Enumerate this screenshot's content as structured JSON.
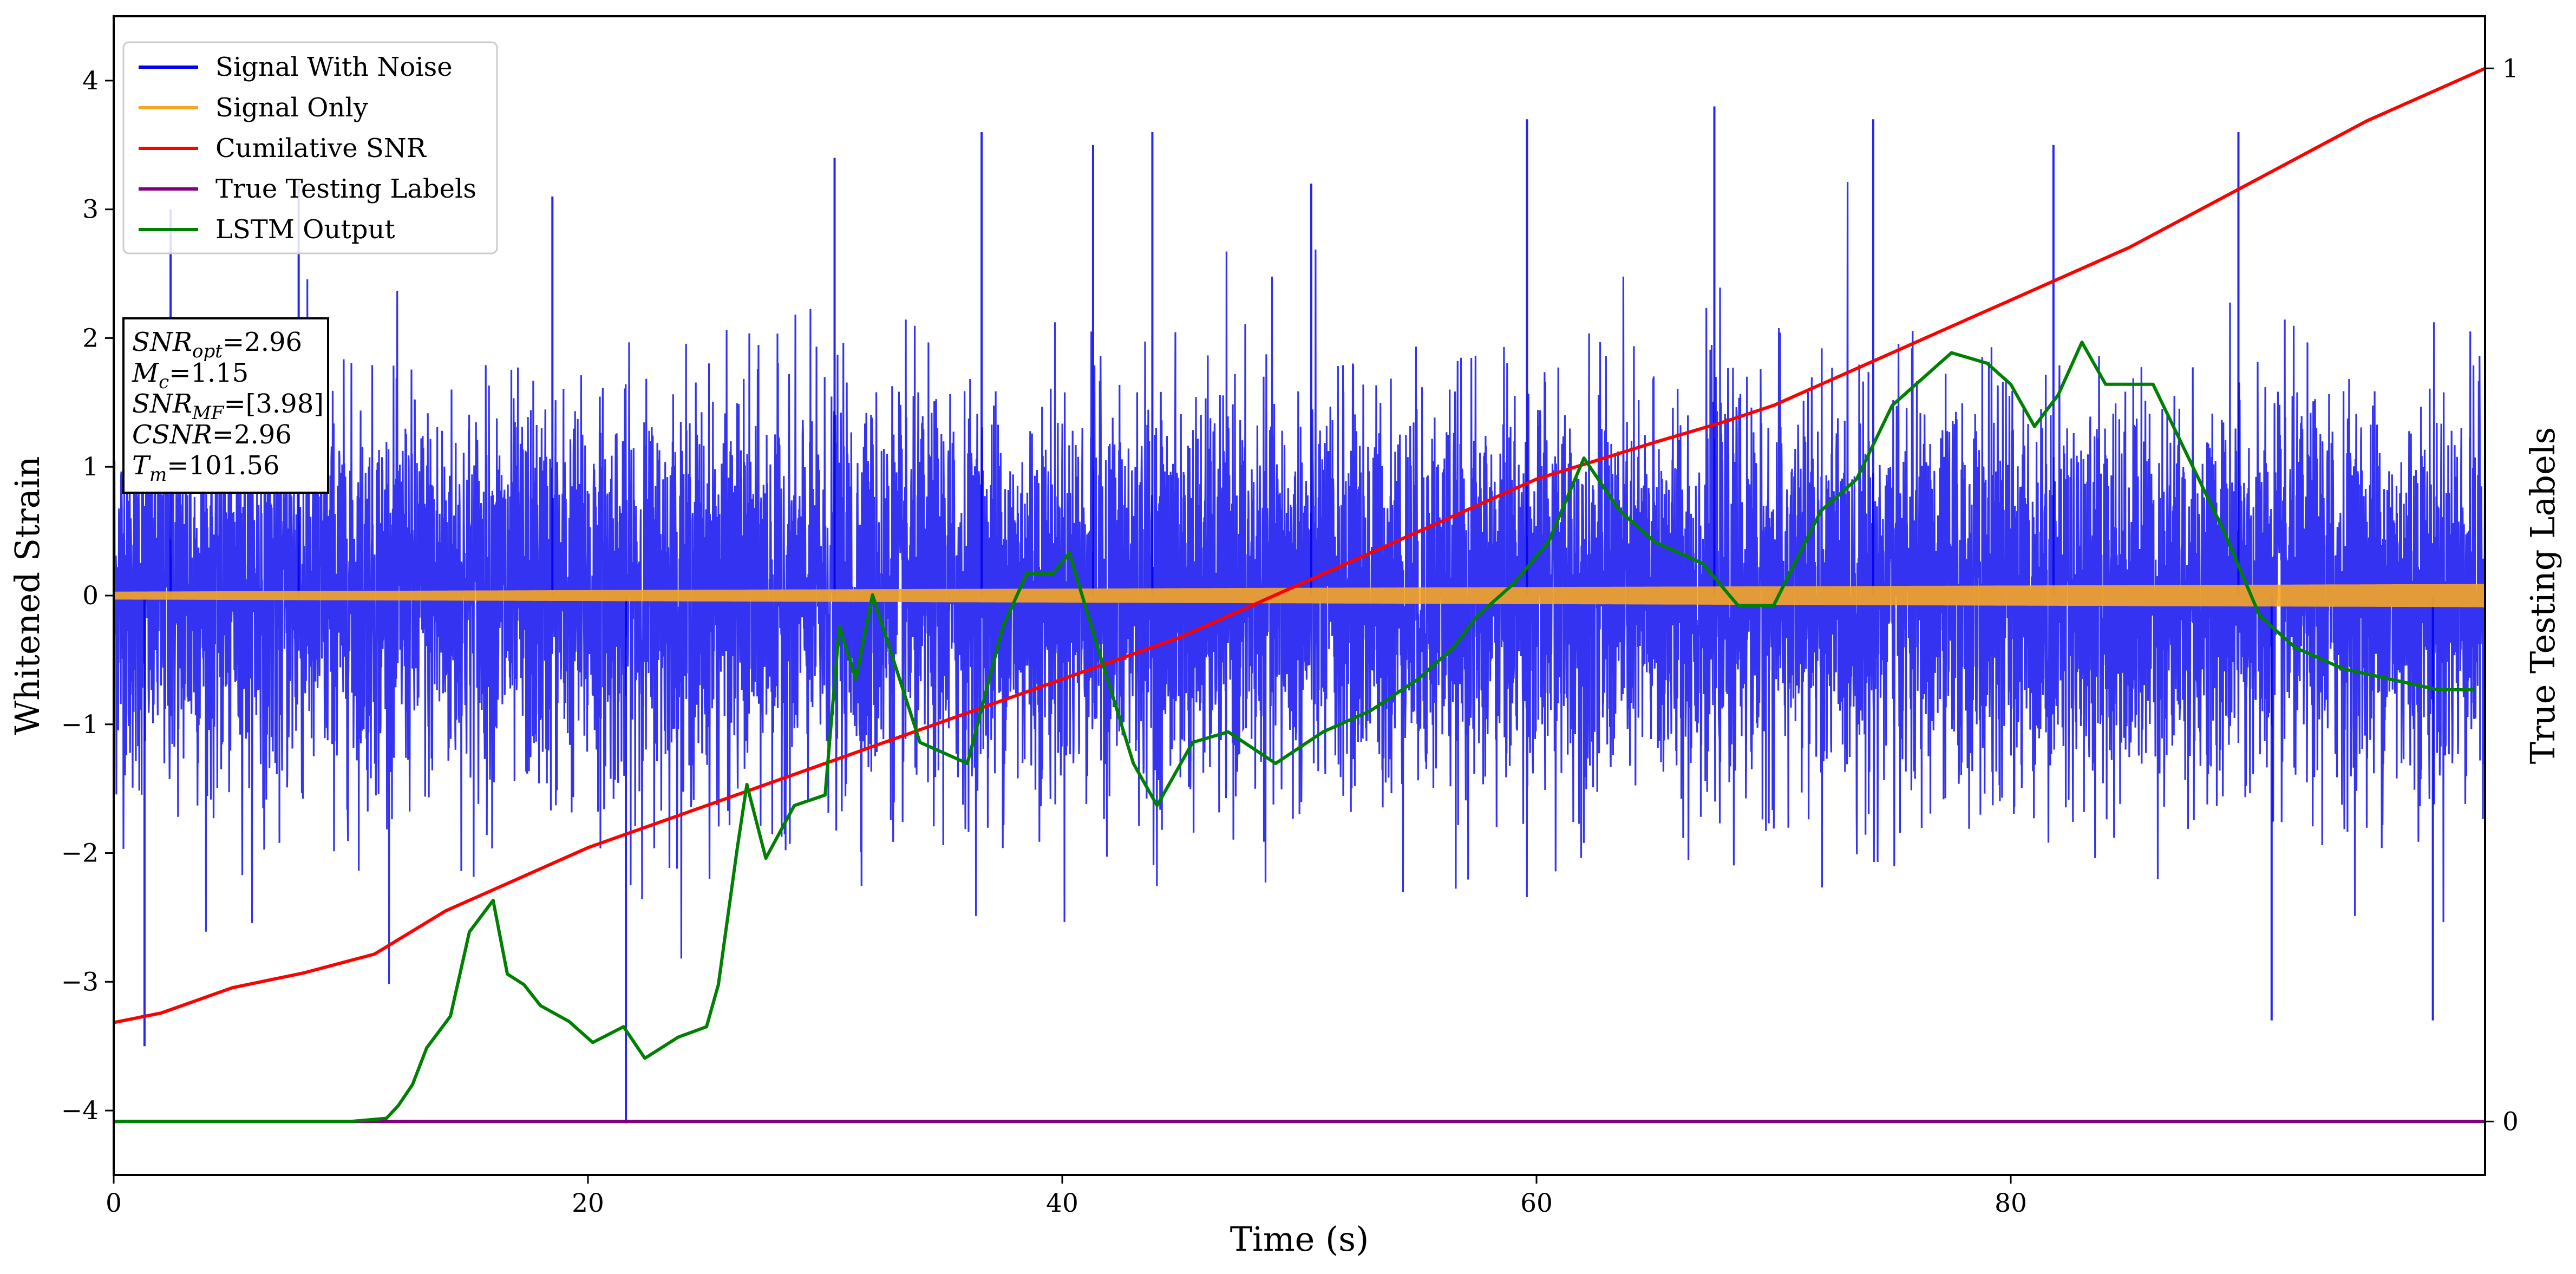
{
  "chart_data": {
    "type": "line",
    "title": "",
    "xlabel": "Time (s)",
    "ylabel": "Whitened Strain",
    "y2label": "True Testing Labels",
    "xlim": [
      0,
      100
    ],
    "ylim": [
      -4.5,
      4.5
    ],
    "y2_ticks": [
      0,
      1
    ],
    "x_ticks": [
      0,
      20,
      40,
      60,
      80
    ],
    "y_ticks": [
      -4,
      -3,
      -2,
      -1,
      0,
      1,
      2,
      3,
      4
    ],
    "grid": false,
    "legend_position": "top-left",
    "series": [
      {
        "name": "Signal With Noise",
        "color": "#0000ee",
        "axis": "left",
        "note_values": "dense noise band, sd ~0.75, peaks ~3.9 / -4.1",
        "noise_sd": 0.75,
        "spikes": [
          {
            "x": 2.4,
            "y": 3.0
          },
          {
            "x": 7.8,
            "y": 3.2
          },
          {
            "x": 18.5,
            "y": 3.1
          },
          {
            "x": 21.6,
            "y": -4.1
          },
          {
            "x": 30.4,
            "y": 3.4
          },
          {
            "x": 36.6,
            "y": 3.6
          },
          {
            "x": 41.3,
            "y": 3.5
          },
          {
            "x": 43.8,
            "y": 3.6
          },
          {
            "x": 50.5,
            "y": 3.2
          },
          {
            "x": 59.6,
            "y": 3.7
          },
          {
            "x": 67.5,
            "y": 3.8
          },
          {
            "x": 74.2,
            "y": 3.7
          },
          {
            "x": 81.8,
            "y": 3.5
          },
          {
            "x": 89.6,
            "y": 3.6
          },
          {
            "x": 91.0,
            "y": -3.3
          },
          {
            "x": 97.8,
            "y": -3.3
          },
          {
            "x": 1.3,
            "y": -3.5
          }
        ]
      },
      {
        "name": "Signal Only",
        "color": "#f5a623",
        "axis": "left",
        "note_values": "chirp around 0, amplitude growing from ~0.03 to ~0.09",
        "amplitude_start": 0.03,
        "amplitude_end": 0.09
      },
      {
        "name": "Cumilative SNR",
        "color": "#ff0000",
        "axis": "right",
        "x": [
          0,
          2,
          5,
          8,
          11,
          14,
          17,
          20,
          25,
          30,
          35,
          40,
          45,
          50,
          55,
          60,
          65,
          68,
          70,
          75,
          80,
          85,
          90,
          95,
          100
        ],
        "values": [
          0.094,
          0.103,
          0.127,
          0.141,
          0.159,
          0.2,
          0.23,
          0.26,
          0.3,
          0.34,
          0.38,
          0.42,
          0.46,
          0.51,
          0.56,
          0.61,
          0.645,
          0.665,
          0.68,
          0.73,
          0.78,
          0.83,
          0.89,
          0.95,
          1.0
        ]
      },
      {
        "name": "True Testing Labels",
        "color": "#800080",
        "axis": "right",
        "x": [
          0,
          100
        ],
        "values": [
          0,
          0
        ]
      },
      {
        "name": "LSTM Output",
        "color": "#008000",
        "axis": "right",
        "x": [
          0,
          10,
          11.5,
          12,
          12.6,
          13.2,
          14.2,
          15,
          16,
          16.6,
          17.3,
          18,
          19.2,
          20.2,
          21.5,
          22.4,
          23.8,
          25,
          25.5,
          26.3,
          26.7,
          27.5,
          28.7,
          30,
          30.6,
          31.3,
          32,
          34,
          36,
          37.5,
          38.5,
          39.6,
          40.3,
          41.5,
          43,
          44,
          45.5,
          47,
          49,
          51,
          53,
          55,
          56.5,
          57.5,
          59,
          60.5,
          62,
          63.5,
          65,
          67,
          68.5,
          70,
          72,
          73.5,
          75,
          76.5,
          77.5,
          79,
          80,
          81,
          82,
          83,
          84,
          85,
          86,
          87.5,
          89,
          90.5,
          92,
          94,
          96,
          98,
          99.5
        ],
        "values": [
          0,
          0,
          0.003,
          0.015,
          0.035,
          0.07,
          0.1,
          0.18,
          0.21,
          0.14,
          0.13,
          0.11,
          0.095,
          0.075,
          0.09,
          0.06,
          0.08,
          0.09,
          0.13,
          0.26,
          0.32,
          0.25,
          0.3,
          0.31,
          0.47,
          0.42,
          0.5,
          0.36,
          0.34,
          0.47,
          0.52,
          0.52,
          0.54,
          0.45,
          0.34,
          0.3,
          0.36,
          0.37,
          0.34,
          0.37,
          0.39,
          0.42,
          0.45,
          0.48,
          0.51,
          0.55,
          0.63,
          0.58,
          0.55,
          0.53,
          0.49,
          0.49,
          0.58,
          0.61,
          0.68,
          0.71,
          0.73,
          0.72,
          0.7,
          0.66,
          0.69,
          0.74,
          0.7,
          0.7,
          0.7,
          0.63,
          0.56,
          0.48,
          0.45,
          0.43,
          0.42,
          0.41,
          0.41
        ]
      }
    ],
    "annotation_lines": [
      {
        "label": "SNR",
        "sub": "opt",
        "value": "=2.96"
      },
      {
        "label": "M",
        "sub": "c",
        "value": "=1.15"
      },
      {
        "label": "SNR",
        "sub": "MF",
        "value": "=[3.98]"
      },
      {
        "label": "CSNR",
        "sub": "",
        "value": "=2.96"
      },
      {
        "label": "T",
        "sub": "m",
        "value": "=101.56"
      }
    ]
  }
}
